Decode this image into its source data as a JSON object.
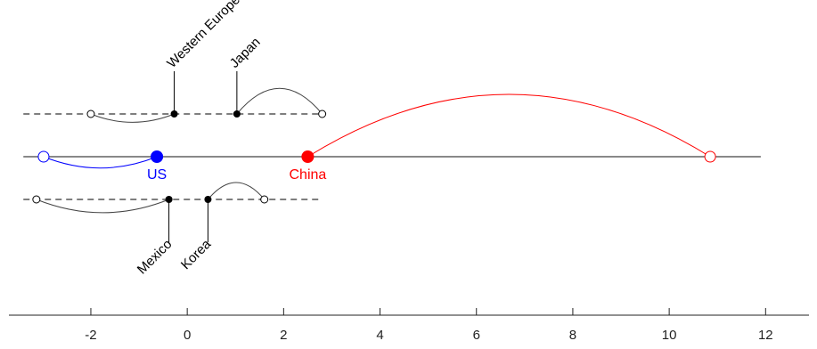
{
  "chart_data": {
    "type": "scatter",
    "title": "",
    "xlabel": "",
    "ylabel": "",
    "xlim": [
      -3.7,
      12.9
    ],
    "xticks": [
      -2,
      0,
      2,
      4,
      6,
      8,
      10,
      12
    ],
    "grid": false,
    "legend": "none",
    "rows": [
      {
        "id": "upper",
        "line_style": "dashed",
        "span": [
          -3.4,
          2.8
        ],
        "points": [
          {
            "name": "Western Europe",
            "x": -0.27,
            "arc_to": -2.0,
            "arc_dir": "down",
            "label_dir": "up"
          },
          {
            "name": "Japan",
            "x": 1.03,
            "arc_to": 2.8,
            "arc_dir": "up",
            "label_dir": "up"
          }
        ]
      },
      {
        "id": "main",
        "line_style": "solid",
        "span": [
          -3.4,
          11.9
        ],
        "points": [
          {
            "name": "US",
            "x": -0.63,
            "arc_to": -2.98,
            "arc_dir": "down",
            "color": "#0000ff",
            "big": true
          },
          {
            "name": "China",
            "x": 2.5,
            "arc_to": 10.85,
            "arc_dir": "up",
            "color": "#ff0000",
            "big": true
          }
        ]
      },
      {
        "id": "lower",
        "line_style": "dashed",
        "span": [
          -3.4,
          2.8
        ],
        "points": [
          {
            "name": "Mexico",
            "x": -0.38,
            "arc_to": -3.13,
            "arc_dir": "down",
            "label_dir": "down"
          },
          {
            "name": "Korea",
            "x": 0.43,
            "arc_to": 1.6,
            "arc_dir": "up",
            "label_dir": "down"
          }
        ]
      }
    ]
  }
}
